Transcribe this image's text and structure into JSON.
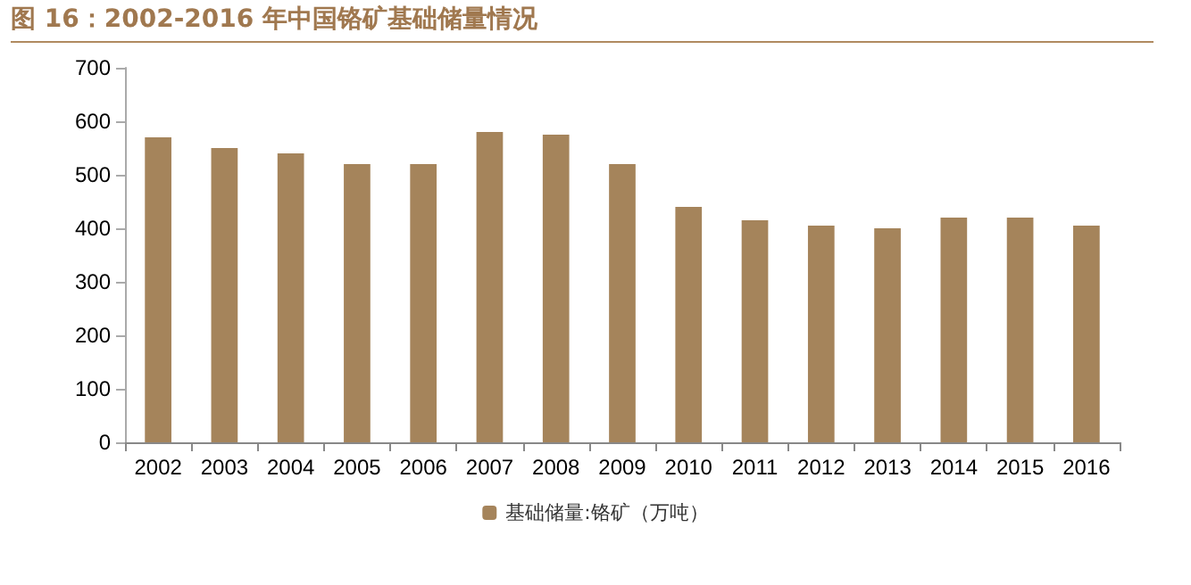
{
  "chart_data": {
    "type": "bar",
    "title": "图 16：2002-2016 年中国铬矿基础储量情况",
    "categories": [
      "2002",
      "2003",
      "2004",
      "2005",
      "2006",
      "2007",
      "2008",
      "2009",
      "2010",
      "2011",
      "2012",
      "2013",
      "2014",
      "2015",
      "2016"
    ],
    "series": [
      {
        "name": "基础储量:铬矿（万吨）",
        "color": "#a5845b",
        "values": [
          570,
          550,
          540,
          520,
          520,
          580,
          575,
          520,
          440,
          415,
          405,
          400,
          420,
          420,
          405
        ]
      }
    ],
    "ylim": [
      0,
      700
    ],
    "yticks": [
      0,
      100,
      200,
      300,
      400,
      500,
      600,
      700
    ],
    "grid": false,
    "legend": "bottom"
  }
}
